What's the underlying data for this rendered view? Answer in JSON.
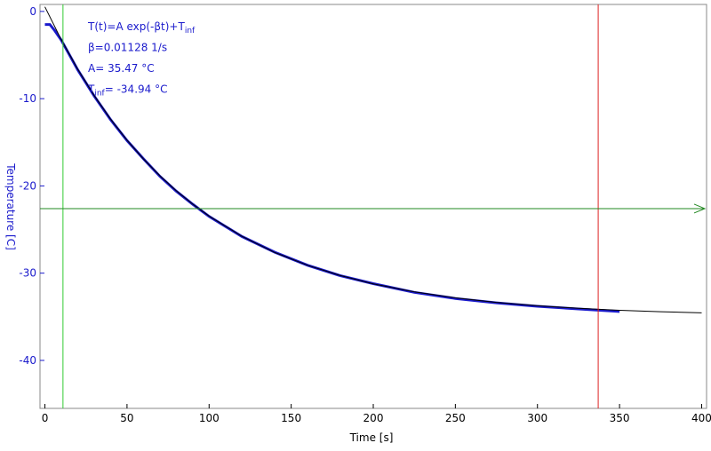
{
  "chart_data": {
    "type": "line",
    "x_label": "Time [s]",
    "y_label": "Temperature [C]",
    "xlim": [
      -3,
      403
    ],
    "ylim": [
      -45.5,
      0.8
    ],
    "xticks": [
      0,
      50,
      100,
      150,
      200,
      250,
      300,
      350,
      400
    ],
    "yticks": [
      0,
      -10,
      -20,
      -30,
      -40
    ],
    "grid": false,
    "series": [
      {
        "color": "#1a1acc",
        "x": [
          0,
          3,
          6,
          10,
          20,
          30,
          40,
          50,
          60,
          70,
          80,
          90,
          100,
          120,
          140,
          160,
          180,
          200,
          225,
          250,
          275,
          300,
          325,
          350
        ],
        "values": [
          -1.5,
          -1.5,
          -2.2,
          -3.3,
          -6.7,
          -9.7,
          -12.4,
          -14.8,
          -16.9,
          -18.9,
          -20.6,
          -22.1,
          -23.5,
          -25.8,
          -27.6,
          -29.1,
          -30.3,
          -31.2,
          -32.2,
          -32.9,
          -33.4,
          -33.8,
          -34.1,
          -34.4
        ]
      },
      {
        "color": "#000000",
        "x": [
          0,
          10,
          20,
          30,
          40,
          50,
          60,
          70,
          80,
          90,
          100,
          120,
          140,
          160,
          180,
          200,
          225,
          250,
          275,
          300,
          325,
          350,
          375,
          400
        ],
        "values": [
          0.53,
          -3.25,
          -6.64,
          -9.65,
          -12.35,
          -14.76,
          -16.91,
          -18.84,
          -20.56,
          -22.09,
          -23.46,
          -25.78,
          -27.63,
          -29.1,
          -30.28,
          -31.22,
          -32.14,
          -32.83,
          -33.35,
          -33.74,
          -34.03,
          -34.26,
          -34.42,
          -34.55
        ]
      }
    ],
    "cursors": [
      {
        "axis": "x",
        "value": 11,
        "color": "#33cc33"
      },
      {
        "axis": "x",
        "value": 337,
        "color": "#dd2222"
      },
      {
        "axis": "y",
        "value": -22.6,
        "color": "#228822"
      }
    ],
    "annotations": [
      {
        "text": "T(t)=A exp(-βt)+T",
        "sub": "inf"
      },
      {
        "text": "β=0.01128 1/s"
      },
      {
        "text": "A= 35.47 °C"
      },
      {
        "text": "T",
        "sub": "inf",
        "after": "= -34.94 °C"
      }
    ]
  }
}
